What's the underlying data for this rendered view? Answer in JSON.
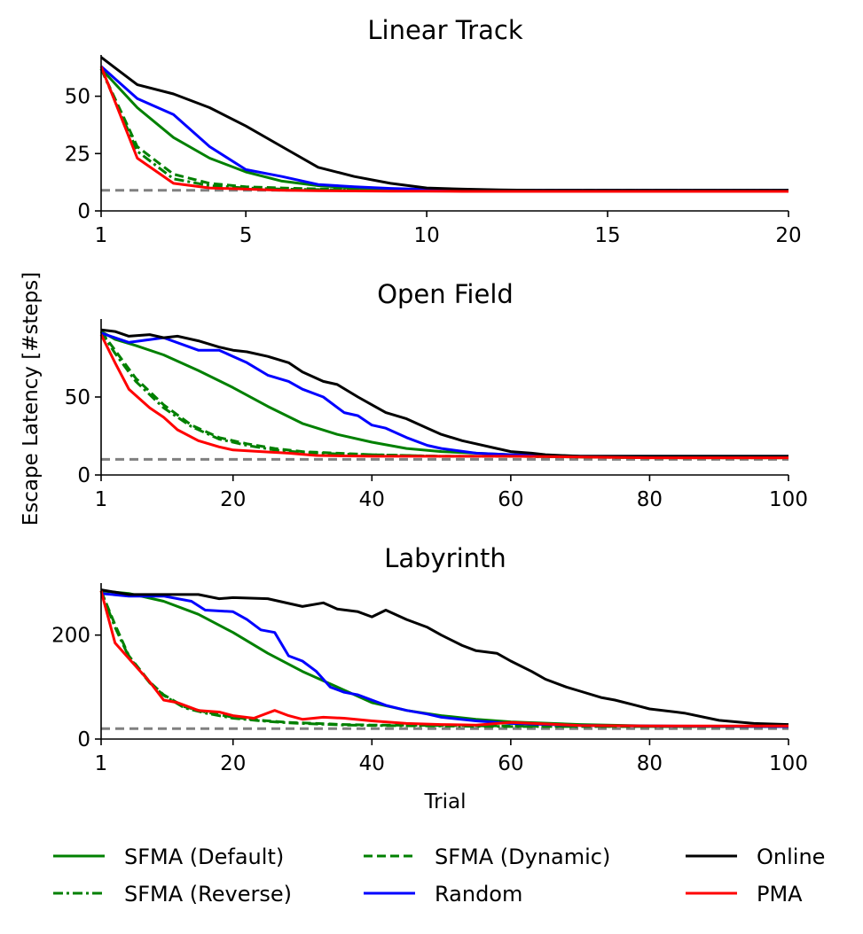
{
  "shared_ylabel": "Escape Latency [#steps]",
  "legend": [
    {
      "label": "SFMA (Default)",
      "color": "#008000",
      "dash": "solid"
    },
    {
      "label": "SFMA (Dynamic)",
      "color": "#008000",
      "dash": "dashed"
    },
    {
      "label": "Online",
      "color": "#000000",
      "dash": "solid"
    },
    {
      "label": "SFMA (Reverse)",
      "color": "#008000",
      "dash": "dashdot"
    },
    {
      "label": "Random",
      "color": "#0000ff",
      "dash": "solid"
    },
    {
      "label": "PMA",
      "color": "#ff0000",
      "dash": "solid"
    }
  ],
  "chart_data": [
    {
      "type": "line",
      "title": "Linear Track",
      "xlabel": "",
      "xlim": [
        1,
        20
      ],
      "ylim": [
        0,
        68
      ],
      "xticks": [
        1,
        5,
        10,
        15,
        20
      ],
      "yticks": [
        0,
        25,
        50
      ],
      "baseline": 9,
      "series": [
        {
          "name": "SFMA (Default)",
          "color": "#008000",
          "dash": "solid",
          "x": [
            1,
            2,
            3,
            4,
            5,
            6,
            7,
            8,
            9,
            10,
            11,
            12,
            13,
            14,
            15,
            16,
            17,
            18,
            19,
            20
          ],
          "y": [
            62,
            45,
            32,
            23,
            17,
            13,
            11,
            10,
            9.5,
            9.2,
            9,
            9,
            9,
            9,
            9,
            9,
            9,
            9,
            9,
            9
          ]
        },
        {
          "name": "SFMA (Dynamic)",
          "color": "#008000",
          "dash": "dashed",
          "x": [
            1,
            2,
            3,
            4,
            5,
            6,
            7,
            8,
            9,
            10,
            11,
            12,
            13,
            14,
            15,
            16,
            17,
            18,
            19,
            20
          ],
          "y": [
            62,
            28,
            16,
            12,
            10.5,
            10,
            9.6,
            9.3,
            9.1,
            9,
            9,
            9,
            9,
            9,
            9,
            9,
            9,
            9,
            9,
            9
          ]
        },
        {
          "name": "SFMA (Reverse)",
          "color": "#008000",
          "dash": "dashdot",
          "x": [
            1,
            2,
            3,
            4,
            5,
            6,
            7,
            8,
            9,
            10,
            11,
            12,
            13,
            14,
            15,
            16,
            17,
            18,
            19,
            20
          ],
          "y": [
            62,
            26,
            14,
            11,
            10,
            9.5,
            9.3,
            9.1,
            9,
            9,
            9,
            9,
            9,
            9,
            9,
            9,
            9,
            9,
            9,
            9
          ]
        },
        {
          "name": "Random",
          "color": "#0000ff",
          "dash": "solid",
          "x": [
            1,
            2,
            3,
            4,
            5,
            6,
            7,
            8,
            9,
            10,
            11,
            12,
            13,
            14,
            15,
            16,
            17,
            18,
            19,
            20
          ],
          "y": [
            63,
            49,
            42,
            28,
            18,
            15,
            11.5,
            10.5,
            9.8,
            9.4,
            9.2,
            9,
            9,
            9,
            9,
            9,
            9,
            9,
            9,
            9
          ]
        },
        {
          "name": "Online",
          "color": "#000000",
          "dash": "solid",
          "x": [
            1,
            2,
            3,
            4,
            5,
            6,
            7,
            8,
            9,
            10,
            11,
            12,
            13,
            14,
            15,
            16,
            17,
            18,
            19,
            20
          ],
          "y": [
            67,
            55,
            51,
            45,
            37,
            28,
            19,
            15,
            12,
            10,
            9.5,
            9.2,
            9,
            9,
            9,
            9,
            9,
            9,
            9,
            9
          ]
        },
        {
          "name": "PMA",
          "color": "#ff0000",
          "dash": "solid",
          "x": [
            1,
            2,
            3,
            4,
            5,
            6,
            7,
            8,
            9,
            10,
            11,
            12,
            13,
            14,
            15,
            16,
            17,
            18,
            19,
            20
          ],
          "y": [
            63,
            23,
            12,
            10,
            9.5,
            9,
            8.8,
            8.7,
            8.6,
            8.6,
            8.5,
            8.5,
            8.5,
            8.5,
            8.5,
            8.5,
            8.5,
            8.5,
            8.5,
            8.5
          ]
        }
      ]
    },
    {
      "type": "line",
      "title": "Open Field",
      "xlabel": "",
      "xlim": [
        1,
        100
      ],
      "ylim": [
        0,
        100
      ],
      "xticks": [
        1,
        20,
        40,
        60,
        80,
        100
      ],
      "yticks": [
        0,
        50
      ],
      "baseline": 10,
      "series": [
        {
          "name": "SFMA (Default)",
          "color": "#008000",
          "dash": "solid",
          "x": [
            1,
            3,
            6,
            10,
            15,
            20,
            25,
            30,
            35,
            40,
            45,
            50,
            55,
            60,
            70,
            80,
            90,
            100
          ],
          "y": [
            92,
            87,
            83,
            77,
            67,
            56,
            44,
            33,
            26,
            21,
            17,
            15,
            14,
            13,
            12,
            12,
            12,
            12
          ]
        },
        {
          "name": "SFMA (Dynamic)",
          "color": "#008000",
          "dash": "dashed",
          "x": [
            1,
            3,
            6,
            10,
            14,
            18,
            22,
            26,
            30,
            35,
            40,
            50,
            60,
            80,
            100
          ],
          "y": [
            92,
            80,
            62,
            45,
            32,
            24,
            20,
            17,
            15,
            14,
            13,
            12,
            12,
            11,
            11
          ]
        },
        {
          "name": "SFMA (Reverse)",
          "color": "#008000",
          "dash": "dashdot",
          "x": [
            1,
            3,
            6,
            10,
            14,
            18,
            22,
            26,
            30,
            35,
            40,
            50,
            60,
            80,
            100
          ],
          "y": [
            92,
            78,
            60,
            43,
            31,
            23,
            19,
            16,
            14.5,
            13.5,
            13,
            12,
            12,
            11,
            11
          ]
        },
        {
          "name": "Random",
          "color": "#0000ff",
          "dash": "solid",
          "x": [
            1,
            5,
            10,
            15,
            18,
            20,
            22,
            25,
            28,
            30,
            33,
            36,
            38,
            40,
            42,
            45,
            48,
            50,
            55,
            60,
            70,
            80,
            100
          ],
          "y": [
            91,
            85,
            88,
            80,
            80,
            76,
            72,
            64,
            60,
            55,
            50,
            40,
            38,
            32,
            30,
            24,
            19,
            17,
            14,
            13,
            12,
            12,
            12
          ]
        },
        {
          "name": "Online",
          "color": "#000000",
          "dash": "solid",
          "x": [
            1,
            3,
            5,
            8,
            10,
            12,
            15,
            18,
            20,
            22,
            25,
            28,
            30,
            33,
            35,
            38,
            40,
            42,
            45,
            48,
            50,
            53,
            55,
            58,
            60,
            63,
            65,
            70,
            80,
            90,
            100
          ],
          "y": [
            93,
            92,
            89,
            90,
            88,
            89,
            86,
            82,
            80,
            79,
            76,
            72,
            66,
            60,
            58,
            50,
            45,
            40,
            36,
            30,
            26,
            22,
            20,
            17,
            15,
            14,
            13,
            12,
            12,
            12,
            12
          ]
        },
        {
          "name": "PMA",
          "color": "#ff0000",
          "dash": "solid",
          "x": [
            1,
            3,
            5,
            8,
            10,
            12,
            15,
            18,
            20,
            24,
            28,
            32,
            40,
            50,
            60,
            80,
            100
          ],
          "y": [
            90,
            72,
            55,
            43,
            37,
            29,
            22,
            18,
            16,
            15,
            14,
            12.5,
            12,
            12,
            12,
            11,
            11
          ]
        }
      ]
    },
    {
      "type": "line",
      "title": "Labyrinth",
      "xlabel": "Trial",
      "xlim": [
        1,
        100
      ],
      "ylim": [
        0,
        300
      ],
      "xticks": [
        1,
        20,
        40,
        60,
        80,
        100
      ],
      "yticks": [
        0,
        200
      ],
      "baseline": 20,
      "series": [
        {
          "name": "SFMA (Default)",
          "color": "#008000",
          "dash": "solid",
          "x": [
            1,
            5,
            10,
            15,
            20,
            25,
            30,
            35,
            40,
            45,
            50,
            55,
            60,
            70,
            80,
            90,
            100
          ],
          "y": [
            285,
            280,
            265,
            240,
            205,
            165,
            130,
            100,
            70,
            55,
            45,
            38,
            33,
            28,
            25,
            24,
            24
          ]
        },
        {
          "name": "SFMA (Dynamic)",
          "color": "#008000",
          "dash": "dashed",
          "x": [
            1,
            3,
            5,
            8,
            10,
            13,
            16,
            20,
            24,
            28,
            32,
            36,
            40,
            50,
            60,
            80,
            100
          ],
          "y": [
            285,
            220,
            160,
            110,
            85,
            62,
            52,
            42,
            36,
            32,
            30,
            28,
            27,
            26,
            25,
            24,
            24
          ]
        },
        {
          "name": "SFMA (Reverse)",
          "color": "#008000",
          "dash": "dashdot",
          "x": [
            1,
            3,
            5,
            8,
            10,
            13,
            16,
            20,
            24,
            28,
            32,
            36,
            40,
            50,
            60,
            80,
            100
          ],
          "y": [
            285,
            215,
            158,
            108,
            84,
            60,
            50,
            40,
            35,
            31,
            29,
            27,
            26,
            25,
            24,
            24,
            24
          ]
        },
        {
          "name": "Random",
          "color": "#0000ff",
          "dash": "solid",
          "x": [
            1,
            5,
            10,
            14,
            16,
            20,
            22,
            24,
            26,
            28,
            30,
            32,
            34,
            36,
            38,
            40,
            42,
            45,
            48,
            50,
            55,
            60,
            70,
            80,
            100
          ],
          "y": [
            280,
            275,
            275,
            265,
            248,
            245,
            230,
            210,
            205,
            160,
            150,
            130,
            100,
            90,
            85,
            75,
            65,
            55,
            48,
            42,
            35,
            30,
            26,
            25,
            24
          ]
        },
        {
          "name": "Online",
          "color": "#000000",
          "dash": "solid",
          "x": [
            1,
            5,
            10,
            15,
            18,
            20,
            25,
            30,
            33,
            35,
            38,
            40,
            42,
            45,
            48,
            50,
            53,
            55,
            58,
            60,
            63,
            65,
            68,
            70,
            73,
            75,
            78,
            80,
            85,
            90,
            95,
            100
          ],
          "y": [
            287,
            278,
            278,
            278,
            270,
            272,
            270,
            255,
            262,
            250,
            245,
            235,
            248,
            230,
            215,
            200,
            180,
            170,
            165,
            150,
            130,
            115,
            100,
            92,
            80,
            75,
            65,
            58,
            50,
            36,
            30,
            28
          ]
        },
        {
          "name": "PMA",
          "color": "#ff0000",
          "dash": "solid",
          "x": [
            1,
            3,
            5,
            8,
            10,
            12,
            15,
            18,
            20,
            23,
            26,
            28,
            30,
            33,
            36,
            40,
            45,
            50,
            55,
            60,
            70,
            80,
            100
          ],
          "y": [
            285,
            185,
            155,
            110,
            75,
            70,
            55,
            52,
            45,
            40,
            55,
            45,
            38,
            42,
            40,
            35,
            30,
            28,
            27,
            32,
            26,
            25,
            25
          ]
        }
      ]
    }
  ]
}
